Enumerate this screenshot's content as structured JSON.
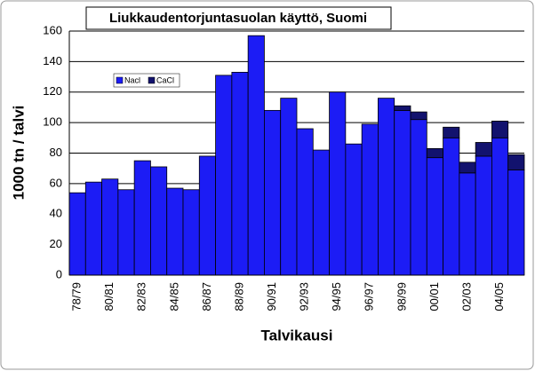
{
  "chart_data": {
    "type": "stacked-bar",
    "title": "Liukkaudentorjuntasuolan käyttö, Suomi",
    "x_label": "Talvikausi",
    "y_label": "1000 tn / talvi",
    "categories": [
      "78/79",
      null,
      "80/81",
      null,
      "82/83",
      null,
      "84/85",
      null,
      "86/87",
      null,
      "88/89",
      null,
      "90/91",
      null,
      "92/93",
      null,
      "94/95",
      null,
      "96/97",
      null,
      "98/99",
      null,
      "00/01",
      null,
      "02/03",
      null,
      "04/05",
      null
    ],
    "series": [
      {
        "name": "Nacl",
        "color": "#1c1cf5",
        "values": [
          54,
          61,
          63,
          56,
          75,
          71,
          57,
          56,
          78,
          131,
          133,
          157,
          108,
          116,
          96,
          82,
          120,
          86,
          99,
          116,
          108,
          102,
          77,
          90,
          67,
          78,
          90,
          69
        ]
      },
      {
        "name": "CaCl",
        "color": "#12126e",
        "values": [
          0,
          0,
          0,
          0,
          0,
          0,
          0,
          0,
          0,
          0,
          0,
          0,
          0,
          0,
          0,
          0,
          0,
          0,
          0,
          0,
          3,
          5,
          6,
          7,
          7,
          9,
          11,
          10
        ]
      }
    ],
    "ylim": [
      0,
      160
    ],
    "yticks": [
      0,
      20,
      40,
      60,
      80,
      100,
      120,
      140,
      160
    ],
    "grid": true
  }
}
